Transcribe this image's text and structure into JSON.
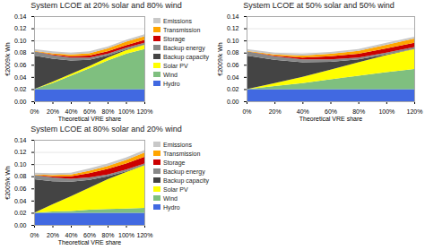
{
  "chart_data": [
    {
      "type": "area",
      "stacked": true,
      "grid": true,
      "legend": "right",
      "title": "System LCOE at 20% solar and 80% wind",
      "x_label": "Theoretical VRE share",
      "y_label": "€2009/k Wh",
      "x": [
        0,
        20,
        40,
        60,
        80,
        100,
        120
      ],
      "xlim": [
        0,
        120
      ],
      "xticks": [
        {
          "value": 0,
          "label": "0%"
        },
        {
          "value": 20,
          "label": "20%"
        },
        {
          "value": 40,
          "label": "40%"
        },
        {
          "value": 60,
          "label": "60%"
        },
        {
          "value": 80,
          "label": "80%"
        },
        {
          "value": 100,
          "label": "100%"
        },
        {
          "value": 120,
          "label": "120%"
        }
      ],
      "ylim": [
        0,
        0.14
      ],
      "yticks": [
        {
          "value": 0,
          "label": "0.00"
        },
        0.02,
        0.04,
        0.06,
        0.08,
        {
          "value": 0.1,
          "label": "0.10"
        },
        0.12,
        0.14
      ],
      "series": [
        {
          "name": "Hydro",
          "color": "#4169e1",
          "values": [
            0.02,
            0.02,
            0.02,
            0.02,
            0.02,
            0.02,
            0.02
          ]
        },
        {
          "name": "Wind",
          "color": "#7fbf7f",
          "values": [
            0.0,
            0.01,
            0.022,
            0.034,
            0.047,
            0.058,
            0.066
          ]
        },
        {
          "name": "Solar PV",
          "color": "#ffff00",
          "values": [
            0.0,
            0.002,
            0.003,
            0.004,
            0.005,
            0.006,
            0.007
          ]
        },
        {
          "name": "Backup capacity",
          "color": "#444444",
          "values": [
            0.055,
            0.038,
            0.022,
            0.01,
            0.003,
            0.001,
            0.0
          ]
        },
        {
          "name": "Backup energy",
          "color": "#888888",
          "values": [
            0.007,
            0.006,
            0.005,
            0.004,
            0.003,
            0.003,
            0.003
          ]
        },
        {
          "name": "Storage",
          "color": "#cc0000",
          "values": [
            0.0,
            0.001,
            0.002,
            0.003,
            0.004,
            0.004,
            0.005
          ]
        },
        {
          "name": "Transmission",
          "color": "#ffa500",
          "values": [
            0.001,
            0.002,
            0.003,
            0.004,
            0.005,
            0.006,
            0.006
          ]
        },
        {
          "name": "Emissions",
          "color": "#c8c8c8",
          "values": [
            0.003,
            0.003,
            0.003,
            0.003,
            0.003,
            0.003,
            0.003
          ]
        }
      ]
    },
    {
      "type": "area",
      "stacked": true,
      "grid": true,
      "title": "System LCOE at 50% solar and 50% wind",
      "x_label": "Theoretical VRE share",
      "y_label": "€2009/k Wh",
      "x": [
        0,
        20,
        40,
        60,
        80,
        100,
        120
      ],
      "xlim": [
        0,
        120
      ],
      "xticks": [
        {
          "value": 0,
          "label": "0%"
        },
        {
          "value": 20,
          "label": "20%"
        },
        {
          "value": 40,
          "label": "40%"
        },
        {
          "value": 60,
          "label": "60%"
        },
        {
          "value": 80,
          "label": "80%"
        },
        {
          "value": 100,
          "label": "100%"
        },
        {
          "value": 120,
          "label": "120%"
        }
      ],
      "ylim": [
        0,
        0.14
      ],
      "yticks": [
        {
          "value": 0,
          "label": "0.00"
        },
        0.02,
        0.04,
        0.06,
        0.08,
        {
          "value": 0.1,
          "label": "0.10"
        },
        0.12,
        0.14
      ],
      "series": [
        {
          "name": "Hydro",
          "color": "#4169e1",
          "values": [
            0.02,
            0.02,
            0.02,
            0.02,
            0.02,
            0.02,
            0.02
          ]
        },
        {
          "name": "Wind",
          "color": "#7fbf7f",
          "values": [
            0.0,
            0.005,
            0.01,
            0.016,
            0.022,
            0.028,
            0.033
          ]
        },
        {
          "name": "Solar PV",
          "color": "#ffff00",
          "values": [
            0.0,
            0.005,
            0.01,
            0.016,
            0.022,
            0.028,
            0.033
          ]
        },
        {
          "name": "Backup capacity",
          "color": "#444444",
          "values": [
            0.055,
            0.038,
            0.024,
            0.013,
            0.005,
            0.001,
            0.0
          ]
        },
        {
          "name": "Backup energy",
          "color": "#888888",
          "values": [
            0.007,
            0.006,
            0.005,
            0.004,
            0.003,
            0.003,
            0.003
          ]
        },
        {
          "name": "Storage",
          "color": "#cc0000",
          "values": [
            0.0,
            0.001,
            0.003,
            0.005,
            0.006,
            0.007,
            0.007
          ]
        },
        {
          "name": "Transmission",
          "color": "#ffa500",
          "values": [
            0.001,
            0.002,
            0.003,
            0.004,
            0.005,
            0.006,
            0.007
          ]
        },
        {
          "name": "Emissions",
          "color": "#c8c8c8",
          "values": [
            0.003,
            0.003,
            0.003,
            0.003,
            0.003,
            0.003,
            0.003
          ]
        }
      ]
    },
    {
      "type": "area",
      "stacked": true,
      "grid": true,
      "legend": "right",
      "title": "System LCOE at 80% solar and 20% wind",
      "x_label": "Theoretical VRE share",
      "y_label": "€2009/k Wh",
      "x": [
        0,
        20,
        40,
        60,
        80,
        100,
        120
      ],
      "xlim": [
        0,
        120
      ],
      "xticks": [
        {
          "value": 0,
          "label": "0%"
        },
        {
          "value": 20,
          "label": "20%"
        },
        {
          "value": 40,
          "label": "40%"
        },
        {
          "value": 60,
          "label": "60%"
        },
        {
          "value": 80,
          "label": "80%"
        },
        {
          "value": 100,
          "label": "100%"
        },
        {
          "value": 120,
          "label": "120%"
        }
      ],
      "ylim": [
        0,
        0.14
      ],
      "yticks": [
        {
          "value": 0,
          "label": "0.00"
        },
        0.02,
        0.04,
        0.06,
        0.08,
        {
          "value": 0.1,
          "label": "0.10"
        },
        0.12,
        0.14
      ],
      "series": [
        {
          "name": "Hydro",
          "color": "#4169e1",
          "values": [
            0.02,
            0.02,
            0.02,
            0.02,
            0.02,
            0.02,
            0.02
          ]
        },
        {
          "name": "Wind",
          "color": "#7fbf7f",
          "values": [
            0.0,
            0.002,
            0.003,
            0.005,
            0.006,
            0.007,
            0.008
          ]
        },
        {
          "name": "Solar PV",
          "color": "#ffff00",
          "values": [
            0.0,
            0.012,
            0.024,
            0.036,
            0.049,
            0.06,
            0.07
          ]
        },
        {
          "name": "Backup capacity",
          "color": "#444444",
          "values": [
            0.055,
            0.038,
            0.024,
            0.013,
            0.005,
            0.001,
            0.0
          ]
        },
        {
          "name": "Backup energy",
          "color": "#888888",
          "values": [
            0.007,
            0.006,
            0.005,
            0.004,
            0.003,
            0.003,
            0.003
          ]
        },
        {
          "name": "Storage",
          "color": "#cc0000",
          "values": [
            0.0,
            0.002,
            0.004,
            0.007,
            0.009,
            0.01,
            0.011
          ]
        },
        {
          "name": "Transmission",
          "color": "#ffa500",
          "values": [
            0.001,
            0.002,
            0.003,
            0.004,
            0.005,
            0.006,
            0.007
          ]
        },
        {
          "name": "Emissions",
          "color": "#c8c8c8",
          "values": [
            0.003,
            0.003,
            0.003,
            0.004,
            0.004,
            0.004,
            0.004
          ]
        }
      ]
    }
  ]
}
